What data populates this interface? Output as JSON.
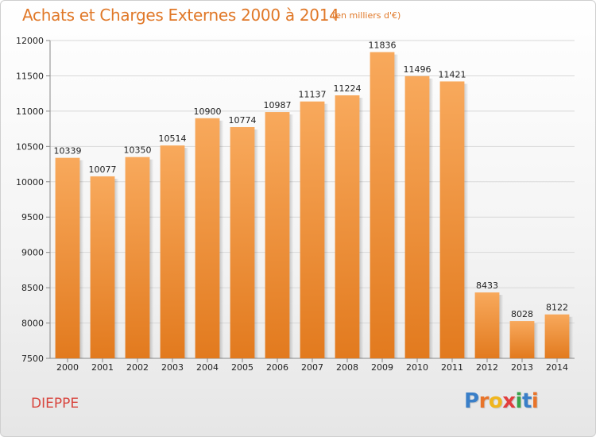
{
  "header": {
    "title": "Achats et Charges Externes 2000 à 2014",
    "subtitle": "(en milliers d'€)"
  },
  "footer": {
    "city": "DIEPPE",
    "brand_letters": [
      "P",
      "r",
      "o",
      "x",
      "i",
      "t",
      "i"
    ],
    "brand_colors": [
      "#3a7fc8",
      "#e8742a",
      "#f0b61e",
      "#e13e3e",
      "#3aa34a",
      "#3a7fc8",
      "#e8742a"
    ]
  },
  "colors": {
    "bar_top": "#f8a95c",
    "bar_bottom": "#e27a1e",
    "grid": "#d8d8d8",
    "axis": "#888888",
    "title": "#e07828"
  },
  "chart_data": {
    "type": "bar",
    "title": "Achats et Charges Externes 2000 à 2014",
    "subtitle": "(en milliers d'€)",
    "categories": [
      "2000",
      "2001",
      "2002",
      "2003",
      "2004",
      "2005",
      "2006",
      "2007",
      "2008",
      "2009",
      "2010",
      "2011",
      "2012",
      "2013",
      "2014"
    ],
    "values": [
      10339,
      10077,
      10350,
      10514,
      10900,
      10774,
      10987,
      11137,
      11224,
      11836,
      11496,
      11421,
      8433,
      8028,
      8122
    ],
    "ylim": [
      7500,
      12000
    ],
    "yticks": [
      7500,
      8000,
      8500,
      9000,
      9500,
      10000,
      10500,
      11000,
      11500,
      12000
    ],
    "grid": true,
    "data_labels": true
  }
}
